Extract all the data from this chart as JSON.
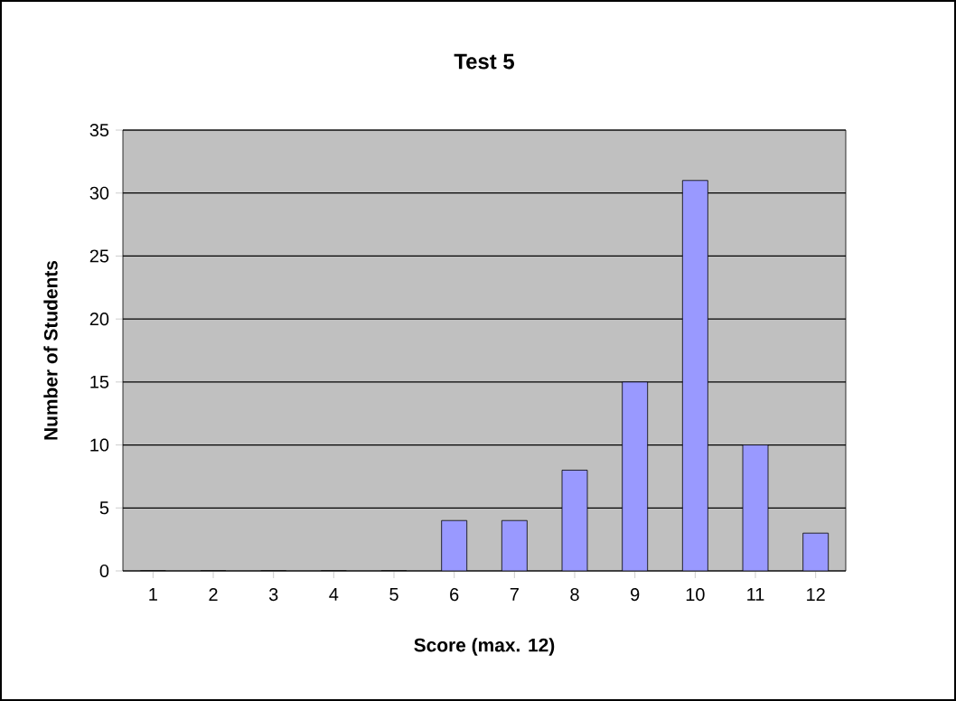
{
  "chart_data": {
    "type": "bar",
    "title": "Test 5",
    "xlabel": "Score (max. 12)",
    "ylabel": "Number of Students",
    "categories": [
      "1",
      "2",
      "3",
      "4",
      "5",
      "6",
      "7",
      "8",
      "9",
      "10",
      "11",
      "12"
    ],
    "values": [
      0,
      0,
      0,
      0,
      0,
      4,
      4,
      8,
      15,
      31,
      10,
      3
    ],
    "color": "#9999ff",
    "ylim": [
      0,
      35
    ],
    "yticks": [
      0,
      5,
      10,
      15,
      20,
      25,
      30,
      35
    ],
    "grid": "y"
  }
}
